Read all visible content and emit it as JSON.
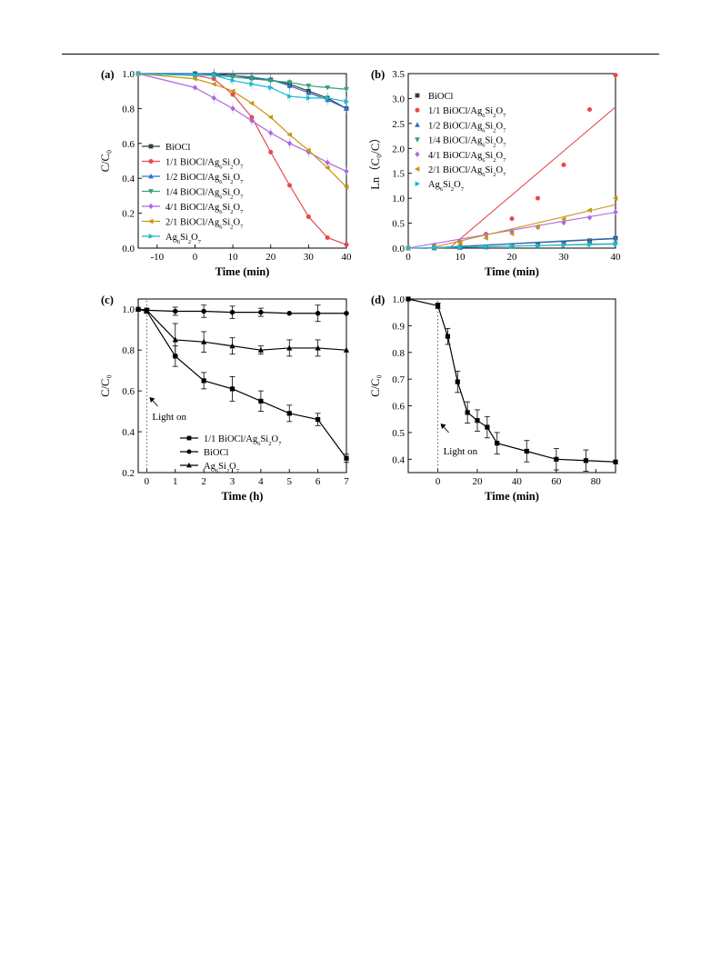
{
  "chart_data": [
    {
      "id": "a",
      "type": "line",
      "panel_label": "(a)",
      "xlabel": "Time (min)",
      "ylabel": "C/C₀",
      "xlim": [
        -15,
        40
      ],
      "ylim": [
        0.0,
        1.0
      ],
      "xticks": [
        -10,
        0,
        10,
        20,
        30,
        40
      ],
      "yticks": [
        0.0,
        0.2,
        0.4,
        0.6,
        0.8,
        1.0
      ],
      "legend_position": "bottom-left",
      "series": [
        {
          "name": "BiOCl",
          "color": "#3a3a3a",
          "marker": "square",
          "x": [
            -15,
            0,
            5,
            10,
            15,
            20,
            25,
            30,
            35,
            40
          ],
          "y": [
            1.0,
            1.0,
            0.995,
            0.99,
            0.975,
            0.965,
            0.94,
            0.9,
            0.86,
            0.8
          ]
        },
        {
          "name": "1/1 BiOCl/Ag6Si2O7",
          "color": "#e8474a",
          "marker": "circle",
          "x": [
            -15,
            0,
            5,
            10,
            15,
            20,
            25,
            30,
            35,
            40
          ],
          "y": [
            1.0,
            0.99,
            0.97,
            0.88,
            0.75,
            0.55,
            0.36,
            0.18,
            0.06,
            0.02
          ]
        },
        {
          "name": "1/2 BiOCl/Ag6Si2O7",
          "color": "#2e72c4",
          "marker": "triangle-up",
          "x": [
            -15,
            0,
            5,
            10,
            15,
            20,
            25,
            30,
            35,
            40
          ],
          "y": [
            1.0,
            1.0,
            1.0,
            0.99,
            0.98,
            0.965,
            0.93,
            0.89,
            0.85,
            0.8
          ]
        },
        {
          "name": "1/4 BiOCl/Ag6Si2O7",
          "color": "#2ea37c",
          "marker": "triangle-down",
          "x": [
            -15,
            0,
            5,
            10,
            15,
            20,
            25,
            30,
            35,
            40
          ],
          "y": [
            1.0,
            0.99,
            0.99,
            0.98,
            0.97,
            0.96,
            0.95,
            0.93,
            0.92,
            0.91
          ]
        },
        {
          "name": "4/1 BiOCl/Ag6Si2O7",
          "color": "#b065e0",
          "marker": "diamond",
          "x": [
            -15,
            0,
            5,
            10,
            15,
            20,
            25,
            30,
            35,
            40
          ],
          "y": [
            1.0,
            0.92,
            0.86,
            0.8,
            0.73,
            0.66,
            0.6,
            0.55,
            0.49,
            0.44
          ]
        },
        {
          "name": "2/1 BiOCl/Ag6Si2O7",
          "color": "#c9950f",
          "marker": "triangle-left",
          "x": [
            -15,
            0,
            5,
            10,
            15,
            20,
            25,
            30,
            35,
            40
          ],
          "y": [
            1.0,
            0.97,
            0.94,
            0.9,
            0.83,
            0.75,
            0.65,
            0.56,
            0.46,
            0.35
          ]
        },
        {
          "name": "Ag6Si2O7",
          "color": "#1bb8d4",
          "marker": "triangle-right",
          "x": [
            -15,
            0,
            5,
            10,
            15,
            20,
            25,
            30,
            35,
            40
          ],
          "y": [
            1.0,
            0.99,
            0.99,
            0.96,
            0.94,
            0.92,
            0.87,
            0.86,
            0.86,
            0.84
          ]
        }
      ]
    },
    {
      "id": "b",
      "type": "scatter",
      "panel_label": "(b)",
      "xlabel": "Time (min)",
      "ylabel": "Ln（C₀/C）",
      "xlim": [
        0,
        40
      ],
      "ylim": [
        0.0,
        3.5
      ],
      "xticks": [
        0,
        10,
        20,
        30,
        40
      ],
      "yticks": [
        0.0,
        0.5,
        1.0,
        1.5,
        2.0,
        2.5,
        3.0,
        3.5
      ],
      "legend_position": "top-left",
      "series": [
        {
          "name": "BiOCl",
          "color": "#3a3a3a",
          "marker": "square",
          "x": [
            0,
            5,
            10,
            15,
            20,
            25,
            30,
            35,
            40
          ],
          "y": [
            0.0,
            0.01,
            0.02,
            0.03,
            0.05,
            0.07,
            0.1,
            0.15,
            0.2
          ],
          "fit": [
            [
              0,
              -0.02
            ],
            [
              40,
              0.19
            ]
          ]
        },
        {
          "name": "1/1 BiOCl/Ag6Si2O7",
          "color": "#e8474a",
          "marker": "circle",
          "x": [
            0,
            5,
            10,
            15,
            20,
            25,
            30,
            35,
            40
          ],
          "y": [
            0.0,
            0.03,
            0.12,
            0.28,
            0.59,
            1.0,
            1.67,
            2.78,
            3.47
          ],
          "fit": [
            [
              0,
              -0.7
            ],
            [
              40,
              2.83
            ]
          ]
        },
        {
          "name": "1/2 BiOCl/Ag6Si2O7",
          "color": "#2e72c4",
          "marker": "triangle-up",
          "x": [
            0,
            5,
            10,
            15,
            20,
            25,
            30,
            35,
            40
          ],
          "y": [
            0.0,
            0.0,
            0.01,
            0.02,
            0.04,
            0.07,
            0.1,
            0.14,
            0.2
          ],
          "fit": [
            [
              0,
              -0.02
            ],
            [
              40,
              0.2
            ]
          ]
        },
        {
          "name": "1/4 BiOCl/Ag6Si2O7",
          "color": "#2ea37c",
          "marker": "triangle-down",
          "x": [
            0,
            5,
            10,
            15,
            20,
            25,
            30,
            35,
            40
          ],
          "y": [
            0.0,
            0.0,
            0.01,
            0.02,
            0.03,
            0.04,
            0.06,
            0.07,
            0.09
          ],
          "fit": [
            [
              0,
              -0.01
            ],
            [
              40,
              0.09
            ]
          ]
        },
        {
          "name": "4/1 BiOCl/Ag6Si2O7",
          "color": "#b065e0",
          "marker": "diamond",
          "x": [
            0,
            5,
            10,
            15,
            20,
            25,
            30,
            35,
            40
          ],
          "y": [
            0.0,
            0.06,
            0.13,
            0.27,
            0.33,
            0.42,
            0.51,
            0.61,
            0.72
          ],
          "fit": [
            [
              0,
              0.0
            ],
            [
              40,
              0.72
            ]
          ]
        },
        {
          "name": "2/1 BiOCl/Ag6Si2O7",
          "color": "#c9950f",
          "marker": "triangle-left",
          "x": [
            0,
            5,
            10,
            15,
            20,
            25,
            30,
            35,
            40
          ],
          "y": [
            0.0,
            0.03,
            0.1,
            0.2,
            0.29,
            0.43,
            0.58,
            0.76,
            1.0
          ],
          "fit": [
            [
              0,
              -0.1
            ],
            [
              40,
              0.87
            ]
          ]
        },
        {
          "name": "Ag6Si2O7",
          "color": "#1bb8d4",
          "marker": "triangle-right",
          "x": [
            0,
            5,
            10,
            15,
            20,
            25,
            30,
            35,
            40
          ],
          "y": [
            0.0,
            0.01,
            0.02,
            0.03,
            0.04,
            0.05,
            0.06,
            0.07,
            0.08
          ],
          "fit": [
            [
              0,
              0.0
            ],
            [
              40,
              0.08
            ]
          ]
        }
      ]
    },
    {
      "id": "c",
      "type": "line",
      "panel_label": "(c)",
      "xlabel": "Time (h)",
      "ylabel": "C/C₀",
      "xlim": [
        -0.3,
        7
      ],
      "ylim": [
        0.2,
        1.05
      ],
      "xticks": [
        0,
        1,
        2,
        3,
        4,
        5,
        6,
        7
      ],
      "yticks": [
        0.2,
        0.4,
        0.6,
        0.8,
        1.0
      ],
      "annotation": "Light on",
      "light_on_x": 0,
      "legend_position": "bottom-center",
      "series": [
        {
          "name": "1/1 BiOCl/Ag6Si2O7",
          "color": "#000000",
          "marker": "square",
          "x": [
            -0.3,
            0,
            1,
            2,
            3,
            4,
            5,
            6,
            7
          ],
          "y": [
            1.0,
            0.99,
            0.77,
            0.65,
            0.61,
            0.55,
            0.49,
            0.46,
            0.27
          ],
          "err": [
            0,
            0.01,
            0.05,
            0.04,
            0.06,
            0.05,
            0.04,
            0.03,
            0.02
          ]
        },
        {
          "name": "BiOCl",
          "color": "#000000",
          "marker": "circle",
          "x": [
            -0.3,
            0,
            1,
            2,
            3,
            4,
            5,
            6,
            7
          ],
          "y": [
            1.0,
            0.995,
            0.99,
            0.99,
            0.985,
            0.985,
            0.98,
            0.98,
            0.98
          ],
          "err": [
            0,
            0.01,
            0.02,
            0.03,
            0.03,
            0.02,
            0.0,
            0.04,
            0.0
          ]
        },
        {
          "name": "Ag6Si2O7",
          "color": "#000000",
          "marker": "triangle-up",
          "x": [
            -0.3,
            0,
            1,
            2,
            3,
            4,
            5,
            6,
            7
          ],
          "y": [
            1.0,
            0.995,
            0.85,
            0.84,
            0.82,
            0.8,
            0.81,
            0.81,
            0.8
          ],
          "err": [
            0,
            0.01,
            0.08,
            0.05,
            0.04,
            0.02,
            0.04,
            0.04,
            0.0
          ]
        }
      ]
    },
    {
      "id": "d",
      "type": "line",
      "panel_label": "(d)",
      "xlabel": "Time (min)",
      "ylabel": "C/C₀",
      "xlim": [
        -15,
        90
      ],
      "ylim": [
        0.35,
        1.0
      ],
      "xticks": [
        0,
        20,
        40,
        60,
        80
      ],
      "yticks": [
        0.4,
        0.5,
        0.6,
        0.7,
        0.8,
        0.9,
        1.0
      ],
      "annotation": "Light on",
      "light_on_x": 0,
      "series": [
        {
          "name": "",
          "color": "#000000",
          "marker": "square",
          "x": [
            -15,
            0,
            5,
            10,
            15,
            20,
            25,
            30,
            45,
            60,
            75,
            90
          ],
          "y": [
            1.0,
            0.975,
            0.86,
            0.69,
            0.575,
            0.545,
            0.52,
            0.46,
            0.43,
            0.4,
            0.395,
            0.39
          ],
          "err": [
            0,
            0.01,
            0.03,
            0.04,
            0.04,
            0.04,
            0.04,
            0.04,
            0.04,
            0.04,
            0.04,
            0.0
          ]
        }
      ]
    }
  ]
}
